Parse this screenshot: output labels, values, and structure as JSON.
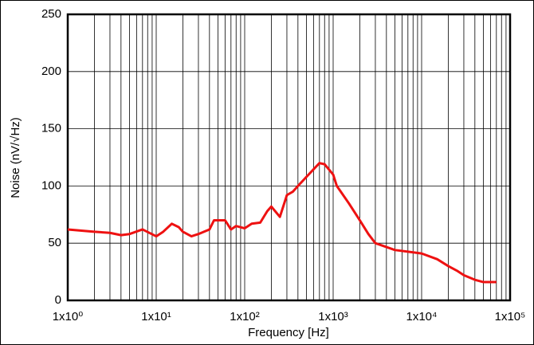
{
  "chart_data": {
    "type": "line",
    "xlabel": "Frequency [Hz]",
    "ylabel": "Noise (nV/√Hz)",
    "xscale": "log",
    "xlim": [
      1,
      100000
    ],
    "ylim": [
      0,
      250
    ],
    "xticks": [
      {
        "value": 1,
        "label": "1x10⁰"
      },
      {
        "value": 10,
        "label": "1x10¹"
      },
      {
        "value": 100,
        "label": "1x10²"
      },
      {
        "value": 1000,
        "label": "1x10³"
      },
      {
        "value": 10000,
        "label": "1x10⁴"
      },
      {
        "value": 100000,
        "label": "1x10⁵"
      }
    ],
    "xminorticks": [
      2,
      3,
      4,
      5,
      6,
      7,
      8,
      9,
      20,
      30,
      40,
      50,
      60,
      70,
      80,
      90,
      200,
      300,
      400,
      500,
      600,
      700,
      800,
      900,
      2000,
      3000,
      4000,
      5000,
      6000,
      7000,
      8000,
      9000,
      20000,
      30000,
      40000,
      50000,
      60000,
      70000,
      80000,
      90000
    ],
    "yticks": [
      0,
      50,
      100,
      150,
      200,
      250
    ],
    "grid": true,
    "series": [
      {
        "name": "Noise",
        "color": "#ee1111",
        "x": [
          1,
          2,
          3,
          4,
          5,
          7,
          10,
          12,
          15,
          18,
          20,
          25,
          30,
          40,
          45,
          60,
          70,
          80,
          100,
          120,
          150,
          180,
          200,
          250,
          300,
          350,
          400,
          500,
          700,
          800,
          1000,
          1100,
          1500,
          2000,
          2500,
          3000,
          5000,
          10000,
          15000,
          20000,
          25000,
          30000,
          40000,
          50000,
          70000
        ],
        "values": [
          62,
          60,
          59,
          57,
          58,
          62,
          56,
          60,
          67,
          64,
          60,
          56,
          58,
          62,
          70,
          70,
          62,
          65,
          63,
          67,
          68,
          78,
          82,
          73,
          92,
          95,
          100,
          108,
          120,
          119,
          110,
          100,
          85,
          70,
          58,
          50,
          44,
          41,
          36,
          30,
          26,
          22,
          18,
          16,
          16
        ]
      }
    ]
  }
}
